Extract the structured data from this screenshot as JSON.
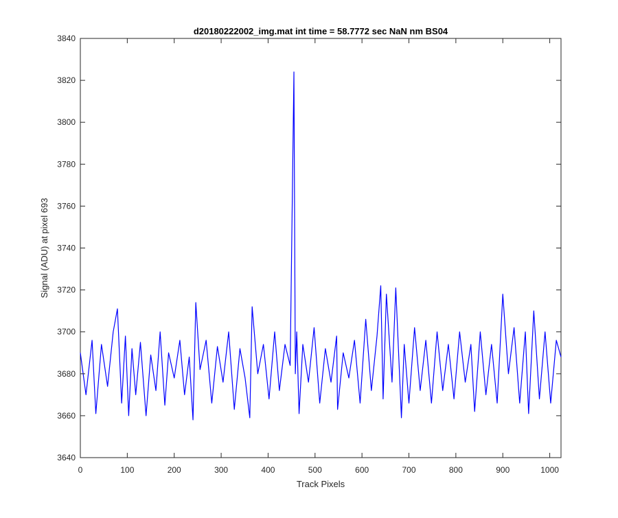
{
  "chart_data": {
    "type": "line",
    "title": "d20180222002_img.mat int time = 58.7772 sec  NaN nm BS04",
    "xlabel": "Track Pixels",
    "ylabel": "Signal (ADU) at pixel 693",
    "xlim": [
      0,
      1024
    ],
    "ylim": [
      3640,
      3840
    ],
    "xticks": [
      0,
      100,
      200,
      300,
      400,
      500,
      600,
      700,
      800,
      900,
      1000
    ],
    "yticks": [
      3640,
      3660,
      3680,
      3700,
      3720,
      3740,
      3760,
      3780,
      3800,
      3820,
      3840
    ],
    "grid": false,
    "legend": "none",
    "series": [
      {
        "color": "#0000ff",
        "x": [
          0,
          12,
          25,
          33,
          45,
          58,
          70,
          79,
          88,
          96,
          103,
          110,
          118,
          128,
          140,
          150,
          161,
          170,
          180,
          188,
          200,
          212,
          222,
          232,
          240,
          246,
          255,
          268,
          280,
          292,
          304,
          316,
          328,
          340,
          351,
          361,
          366,
          378,
          390,
          402,
          414,
          424,
          436,
          447,
          455,
          458,
          461,
          466,
          474,
          486,
          498,
          510,
          522,
          534,
          546,
          548,
          560,
          572,
          584,
          596,
          608,
          620,
          632,
          640,
          645,
          652,
          664,
          672,
          684,
          690,
          700,
          712,
          724,
          736,
          748,
          760,
          772,
          784,
          796,
          808,
          820,
          832,
          840,
          852,
          864,
          876,
          888,
          900,
          912,
          924,
          936,
          948,
          955,
          966,
          978,
          990,
          1002,
          1014,
          1024
        ],
        "y": [
          3690,
          3670,
          3696,
          3661,
          3694,
          3674,
          3700,
          3711,
          3666,
          3698,
          3660,
          3692,
          3670,
          3695,
          3660,
          3689,
          3672,
          3700,
          3665,
          3690,
          3678,
          3696,
          3670,
          3688,
          3658,
          3714,
          3682,
          3696,
          3666,
          3693,
          3676,
          3700,
          3663,
          3692,
          3678,
          3659,
          3712,
          3680,
          3694,
          3668,
          3700,
          3672,
          3694,
          3684,
          3824,
          3680,
          3700,
          3661,
          3694,
          3676,
          3702,
          3666,
          3692,
          3676,
          3698,
          3663,
          3690,
          3678,
          3696,
          3666,
          3706,
          3672,
          3698,
          3722,
          3668,
          3718,
          3676,
          3721,
          3659,
          3694,
          3666,
          3702,
          3672,
          3696,
          3666,
          3700,
          3672,
          3694,
          3668,
          3700,
          3676,
          3694,
          3662,
          3700,
          3670,
          3694,
          3666,
          3718,
          3680,
          3702,
          3666,
          3700,
          3661,
          3710,
          3668,
          3700,
          3666,
          3696,
          3688
        ]
      }
    ]
  }
}
